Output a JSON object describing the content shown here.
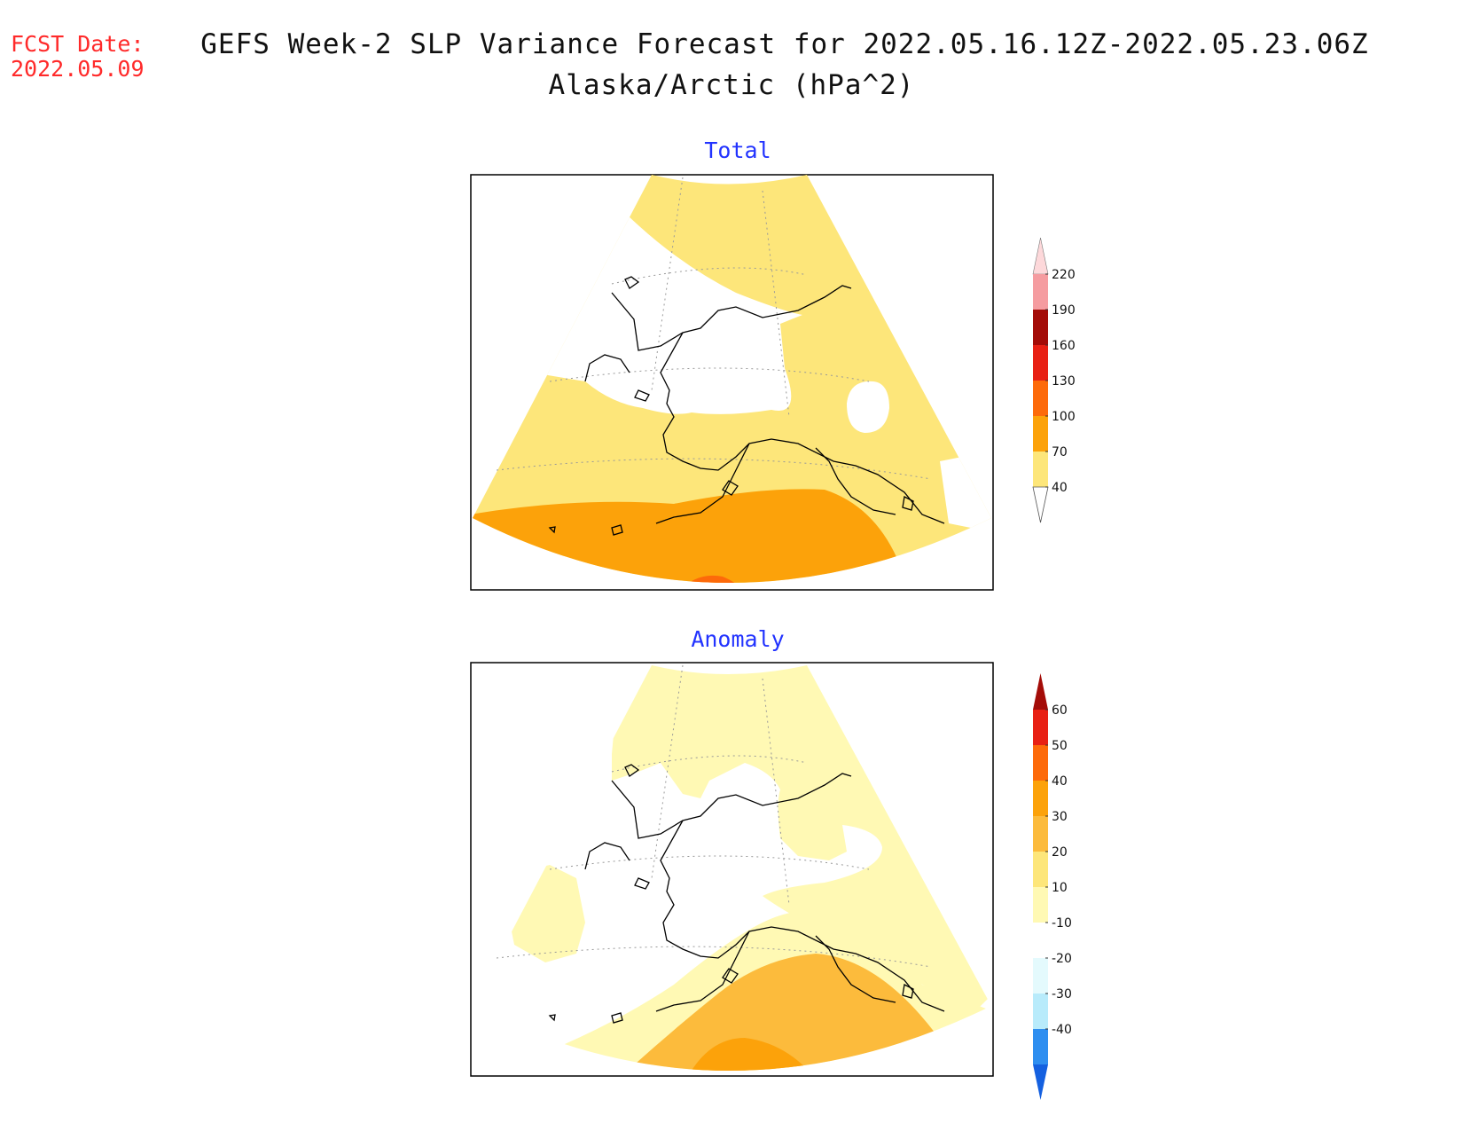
{
  "fcst_label": "FCST Date:",
  "fcst_date": "2022.05.09",
  "title_line1": "GEFS Week-2 SLP Variance Forecast for 2022.05.16.12Z-2022.05.23.06Z",
  "title_line2": "Alaska/Arctic (hPa^2)",
  "colors": {
    "c40": "#fde67a",
    "c70": "#fca20a",
    "c100": "#fd6a0a",
    "c130": "#e82014",
    "c160": "#a40c08",
    "c190": "#f59ca0",
    "c220": "#fdd8da",
    "a10": "#fff9b4",
    "a20": "#fde67a",
    "a30": "#fcbb3c",
    "a40": "#fca20a",
    "a50": "#fd6a0a",
    "a60": "#e82014",
    "a60p": "#a40c08",
    "n10": "#e4fafd",
    "n20": "#b8ebfb",
    "n30": "#8ccaf7",
    "n40": "#2e8ef0",
    "n40m": "#1460e0"
  },
  "panels": [
    {
      "name": "total",
      "title": "Total",
      "colorbar": {
        "labels": [
          "220",
          "190",
          "160",
          "130",
          "100",
          "70",
          "40"
        ]
      }
    },
    {
      "name": "anomaly",
      "title": "Anomaly",
      "colorbar": {
        "labels": [
          "60",
          "50",
          "40",
          "30",
          "20",
          "10",
          "-10",
          "-20",
          "-30",
          "-40"
        ]
      }
    }
  ]
}
